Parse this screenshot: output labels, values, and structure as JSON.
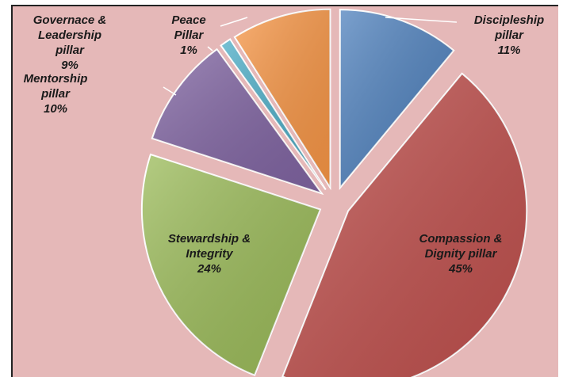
{
  "chart_data": {
    "type": "pie",
    "exploded": true,
    "labels_on_chart": true,
    "slices": [
      {
        "name": "Discipleship pillar",
        "lines": [
          "Discipleship",
          "pillar",
          "11%"
        ],
        "percent": 11,
        "color": "#4f81bd"
      },
      {
        "name": "Compassion & Dignity pillar",
        "lines": [
          "Compassion &",
          "Dignity pillar",
          "45%"
        ],
        "percent": 45,
        "color": "#c0504d"
      },
      {
        "name": "Stewardship & Integrity",
        "lines": [
          "Stewardship &",
          "Integrity",
          "24%"
        ],
        "percent": 24,
        "color": "#9bbb59"
      },
      {
        "name": "Mentorship pillar",
        "lines": [
          "Mentorship",
          "pillar",
          "10%"
        ],
        "percent": 10,
        "color": "#8064a2"
      },
      {
        "name": "Peace Pillar",
        "lines": [
          "Peace",
          "Pillar",
          "1%"
        ],
        "percent": 1,
        "color": "#4bacc6"
      },
      {
        "name": "Governace & Leadership pillar",
        "lines": [
          "Governace &",
          "Leadership",
          "pillar",
          "9%"
        ],
        "percent": 9,
        "color": "#f79646"
      }
    ]
  }
}
